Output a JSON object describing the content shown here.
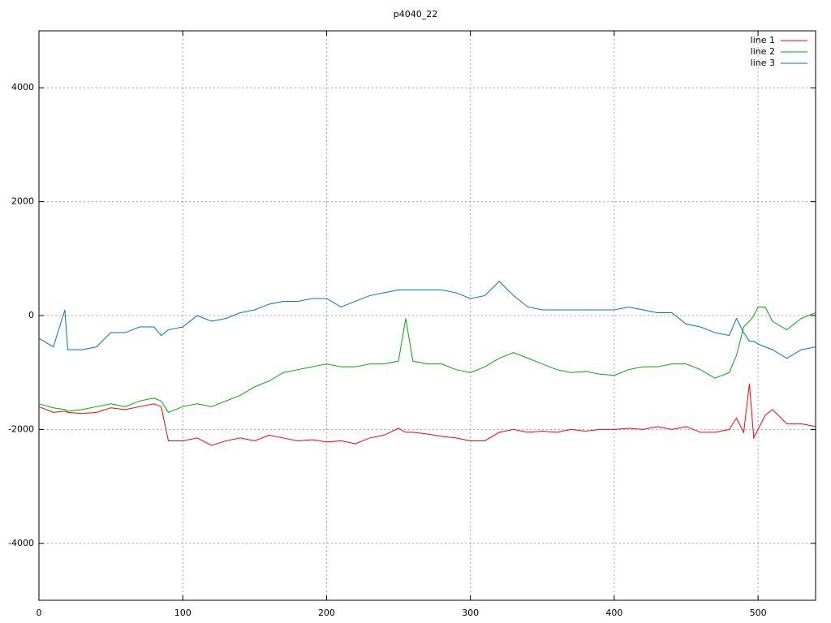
{
  "chart_data": {
    "type": "line",
    "title": "p4040_22",
    "x": [
      0,
      10,
      18,
      20,
      30,
      40,
      50,
      60,
      70,
      80,
      85,
      90,
      100,
      110,
      120,
      130,
      140,
      150,
      160,
      170,
      180,
      190,
      200,
      210,
      220,
      230,
      240,
      250,
      255,
      260,
      270,
      280,
      290,
      300,
      310,
      320,
      330,
      340,
      350,
      360,
      370,
      380,
      390,
      400,
      410,
      420,
      430,
      440,
      450,
      460,
      470,
      480,
      485,
      490,
      494,
      497,
      500,
      505,
      510,
      520,
      530,
      540
    ],
    "series": [
      {
        "name": "line 1",
        "color": "#ff0000",
        "values": [
          -1600,
          -1700,
          -1680,
          -1700,
          -1720,
          -1700,
          -1620,
          -1650,
          -1600,
          -1550,
          -1600,
          -2200,
          -2200,
          -2150,
          -2280,
          -2200,
          -2150,
          -2200,
          -2100,
          -2150,
          -2200,
          -2180,
          -2220,
          -2200,
          -2250,
          -2150,
          -2100,
          -1980,
          -2050,
          -2050,
          -2080,
          -2120,
          -2150,
          -2200,
          -2200,
          -2050,
          -2000,
          -2050,
          -2030,
          -2050,
          -2000,
          -2030,
          -2000,
          -2000,
          -1980,
          -2000,
          -1950,
          -2000,
          -1950,
          -2050,
          -2050,
          -2000,
          -1800,
          -2050,
          -1200,
          -2150,
          -2000,
          -1750,
          -1650,
          -1900,
          -1900,
          -1950
        ]
      },
      {
        "name": "line 2",
        "color": "#00aa00",
        "values": [
          -1550,
          -1620,
          -1650,
          -1680,
          -1650,
          -1600,
          -1550,
          -1600,
          -1500,
          -1450,
          -1500,
          -1700,
          -1600,
          -1550,
          -1600,
          -1500,
          -1400,
          -1250,
          -1150,
          -1000,
          -950,
          -900,
          -850,
          -900,
          -900,
          -850,
          -850,
          -800,
          -50,
          -800,
          -850,
          -850,
          -950,
          -1000,
          -900,
          -750,
          -650,
          -750,
          -850,
          -950,
          -1000,
          -980,
          -1030,
          -1050,
          -950,
          -900,
          -900,
          -850,
          -850,
          -950,
          -1100,
          -1000,
          -700,
          -200,
          -100,
          0,
          150,
          150,
          -100,
          -250,
          -50,
          50
        ]
      },
      {
        "name": "line 3",
        "color": "#0070d0",
        "values": [
          -400,
          -550,
          100,
          -600,
          -600,
          -550,
          -300,
          -300,
          -200,
          -200,
          -350,
          -250,
          -200,
          0,
          -100,
          -50,
          50,
          100,
          200,
          250,
          250,
          300,
          300,
          150,
          250,
          350,
          400,
          450,
          450,
          450,
          450,
          450,
          400,
          300,
          350,
          600,
          350,
          150,
          100,
          100,
          100,
          100,
          100,
          100,
          150,
          100,
          50,
          50,
          -150,
          -200,
          -300,
          -350,
          -50,
          -300,
          -450,
          -450,
          -500,
          -550,
          -600,
          -750,
          -600,
          -550
        ]
      }
    ],
    "xlim": [
      0,
      540
    ],
    "ylim": [
      -5000,
      5000
    ],
    "xticks": [
      0,
      100,
      200,
      300,
      400,
      500
    ],
    "yticks": [
      -4000,
      -2000,
      0,
      2000,
      4000
    ],
    "grid": true,
    "legend": "top-right"
  }
}
